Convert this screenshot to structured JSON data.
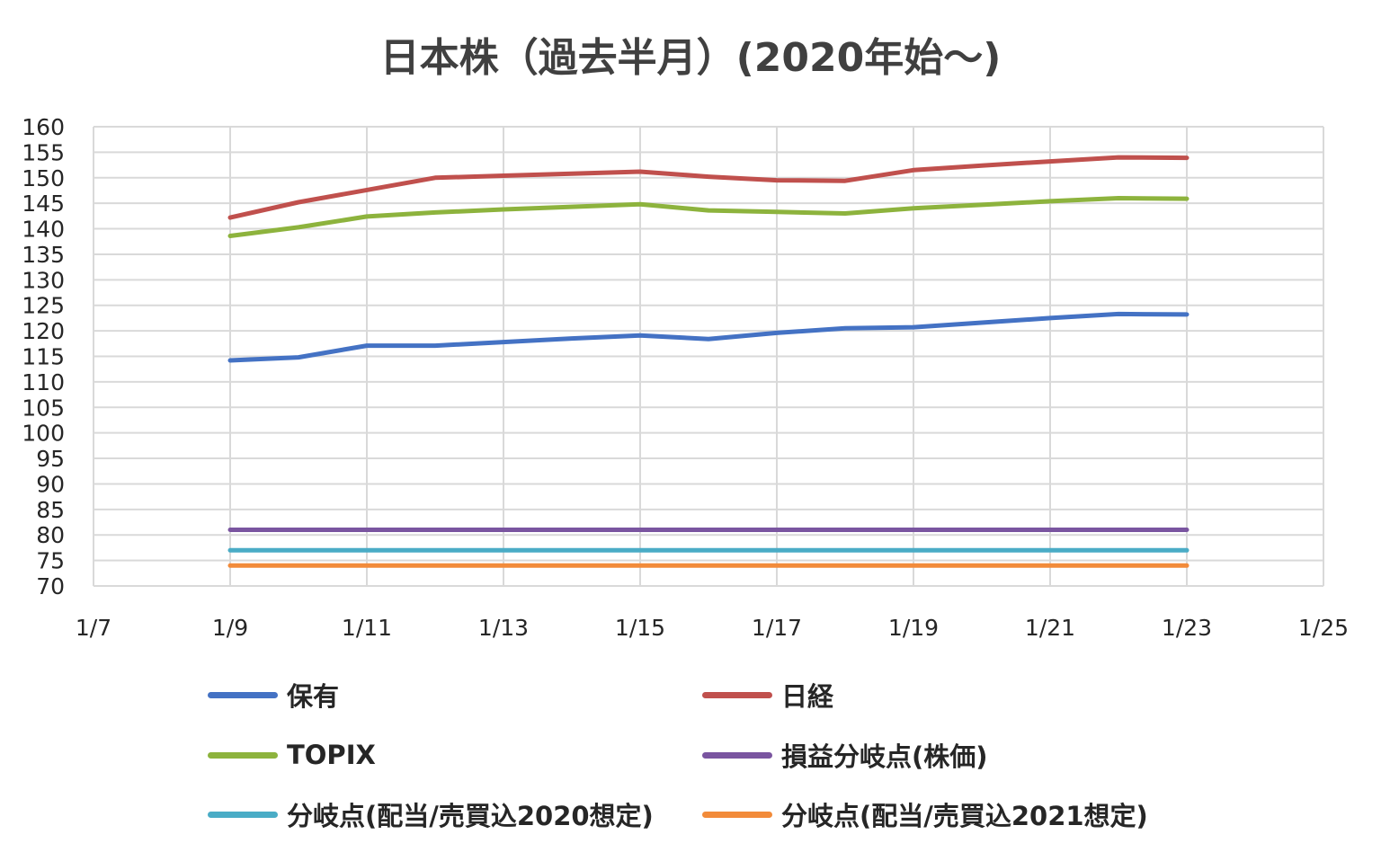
{
  "chart_data": {
    "type": "line",
    "title": "日本株（過去半月）(2020年始～)",
    "xlabel": "",
    "ylabel": "",
    "x_ticks": [
      "1/7",
      "1/9",
      "1/11",
      "1/13",
      "1/15",
      "1/17",
      "1/19",
      "1/21",
      "1/23",
      "1/25"
    ],
    "x_range": [
      "1/7",
      "1/25"
    ],
    "y_ticks": [
      160,
      155,
      150,
      145,
      140,
      135,
      130,
      125,
      120,
      115,
      110,
      105,
      100,
      95,
      90,
      85,
      80,
      75,
      70
    ],
    "ylim": [
      70,
      160
    ],
    "grid": true,
    "legend_position": "bottom",
    "x": [
      "1/9",
      "1/10",
      "1/11",
      "1/12",
      "1/13",
      "1/14",
      "1/15",
      "1/16",
      "1/17",
      "1/18",
      "1/19",
      "1/20",
      "1/21",
      "1/22",
      "1/23"
    ],
    "series": [
      {
        "name": "保有",
        "color": "#4472C4",
        "values": [
          114.2,
          114.8,
          117.1,
          117.1,
          117.8,
          118.5,
          119.1,
          118.4,
          119.6,
          120.5,
          120.7,
          121.6,
          122.5,
          123.3,
          123.2
        ]
      },
      {
        "name": "日経",
        "color": "#C0504D",
        "values": [
          142.2,
          145.2,
          147.6,
          150.0,
          150.4,
          150.8,
          151.2,
          150.2,
          149.5,
          149.4,
          151.5,
          152.4,
          153.2,
          154.0,
          153.9
        ]
      },
      {
        "name": "TOPIX",
        "color": "#8DB33D",
        "values": [
          138.6,
          140.3,
          142.4,
          143.2,
          143.8,
          144.3,
          144.8,
          143.6,
          143.3,
          143.0,
          144.0,
          144.7,
          145.4,
          146.0,
          145.9
        ]
      },
      {
        "name": "損益分岐点(株価)",
        "color": "#7A55A0",
        "values": [
          81.0,
          81.0,
          81.0,
          81.0,
          81.0,
          81.0,
          81.0,
          81.0,
          81.0,
          81.0,
          81.0,
          81.0,
          81.0,
          81.0,
          81.0
        ]
      },
      {
        "name": "分岐点(配当/売買込2020想定)",
        "color": "#4AACC6",
        "values": [
          77.0,
          77.0,
          77.0,
          77.0,
          77.0,
          77.0,
          77.0,
          77.0,
          77.0,
          77.0,
          77.0,
          77.0,
          77.0,
          77.0,
          77.0
        ]
      },
      {
        "name": "分岐点(配当/売買込2021想定)",
        "color": "#F28B3A",
        "values": [
          74.0,
          74.0,
          74.0,
          74.0,
          74.0,
          74.0,
          74.0,
          74.0,
          74.0,
          74.0,
          74.0,
          74.0,
          74.0,
          74.0,
          74.0
        ]
      }
    ]
  }
}
